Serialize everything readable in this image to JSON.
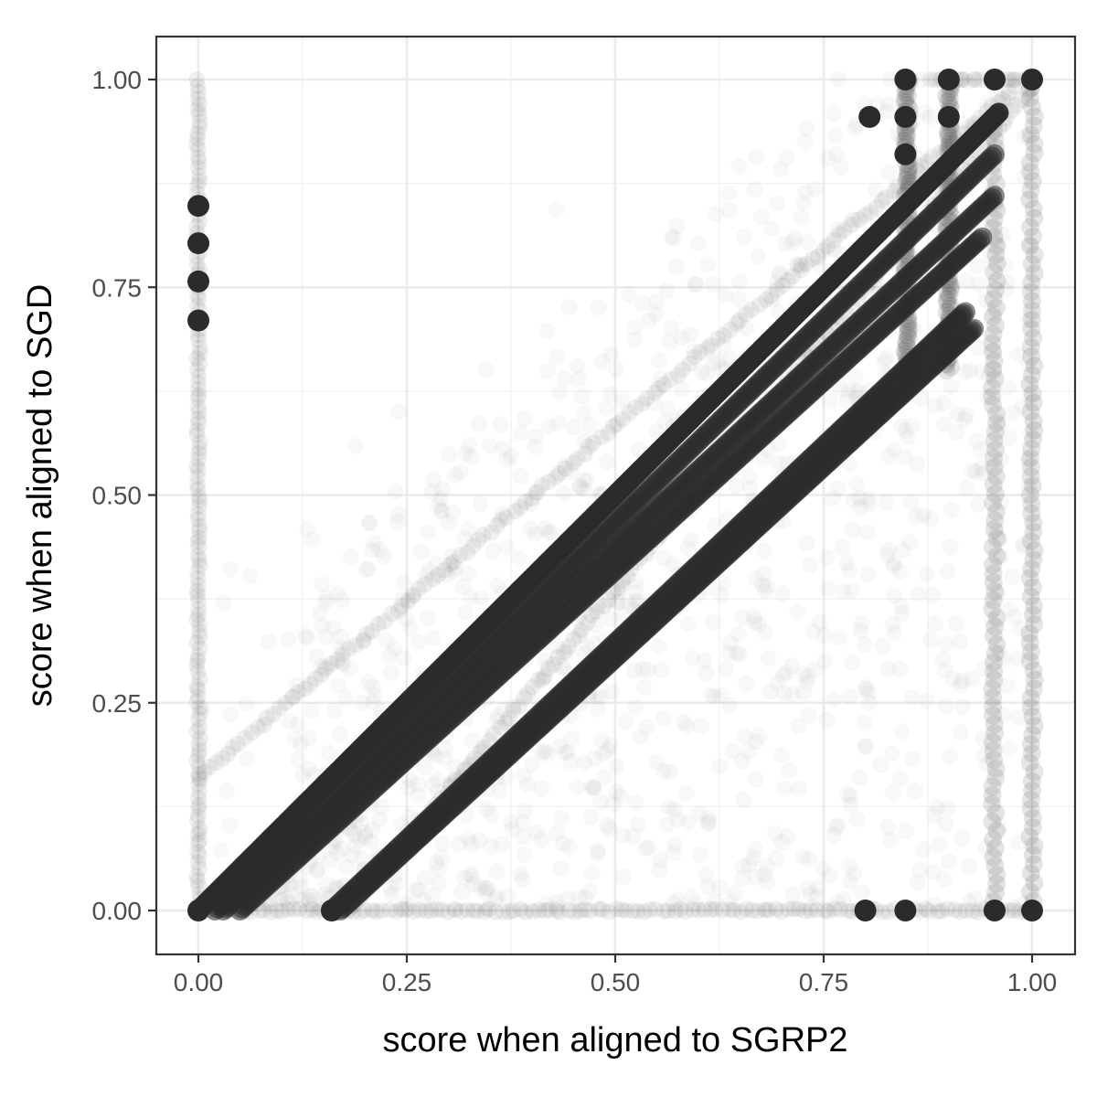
{
  "chart_data": {
    "type": "scatter",
    "title": "",
    "xlabel": "score when aligned to SGRP2",
    "ylabel": "score when aligned to SGD",
    "xlim": [
      -0.05,
      1.05
    ],
    "ylim": [
      -0.05,
      1.05
    ],
    "x_ticks": [
      0,
      0.25,
      0.5,
      0.75,
      1
    ],
    "y_ticks": [
      0,
      0.25,
      0.5,
      0.75,
      1
    ],
    "x_tick_labels": [
      "0.00",
      "0.25",
      "0.50",
      "0.75",
      "1.00"
    ],
    "y_tick_labels": [
      "0.00",
      "0.25",
      "0.50",
      "0.75",
      "1.00"
    ],
    "grid": true,
    "legend": "none",
    "point_color": "#2b2b2b",
    "dense_segments": [
      {
        "x": [
          0,
          0.96
        ],
        "y": [
          0,
          0.96
        ]
      },
      {
        "x": [
          0.02,
          0.955
        ],
        "y": [
          0,
          0.91
        ]
      },
      {
        "x": [
          0.03,
          0.955
        ],
        "y": [
          0,
          0.86
        ]
      },
      {
        "x": [
          0.05,
          0.94
        ],
        "y": [
          0,
          0.81
        ]
      },
      {
        "x": [
          0.16,
          0.92
        ],
        "y": [
          0,
          0.72
        ]
      },
      {
        "x": [
          0.17,
          0.93
        ],
        "y": [
          0,
          0.7
        ]
      }
    ],
    "faint_segments": [
      {
        "x": [
          0,
          0.98
        ],
        "y": [
          0.16,
          0.99
        ]
      },
      {
        "x": [
          0.18,
          1.0
        ],
        "y": [
          0,
          0.99
        ]
      },
      {
        "x": [
          0,
          1.0
        ],
        "y": [
          0,
          0
        ]
      },
      {
        "x": [
          0,
          0
        ],
        "y": [
          0,
          1.0
        ]
      }
    ],
    "columns": [
      {
        "x": 0.85,
        "y": [
          0.65,
          1.0
        ]
      },
      {
        "x": 0.9,
        "y": [
          0.65,
          1.0
        ]
      },
      {
        "x": 0.955,
        "y": [
          0.0,
          0.96
        ]
      },
      {
        "x": 1.0,
        "y": [
          0.0,
          1.0
        ]
      }
    ],
    "highlight_points": [
      {
        "x": 0.0,
        "y": 0.848
      },
      {
        "x": 0.0,
        "y": 0.803
      },
      {
        "x": 0.0,
        "y": 0.757
      },
      {
        "x": 0.0,
        "y": 0.71
      },
      {
        "x": 0.848,
        "y": 1.0
      },
      {
        "x": 0.9,
        "y": 1.0
      },
      {
        "x": 0.955,
        "y": 1.0
      },
      {
        "x": 1.0,
        "y": 1.0
      },
      {
        "x": 0.805,
        "y": 0.955
      },
      {
        "x": 0.848,
        "y": 0.955
      },
      {
        "x": 0.9,
        "y": 0.955
      },
      {
        "x": 0.848,
        "y": 0.91
      },
      {
        "x": 0.848,
        "y": 0.0
      },
      {
        "x": 0.955,
        "y": 0.0
      },
      {
        "x": 1.0,
        "y": 0.0
      },
      {
        "x": 0.8,
        "y": 0.0
      },
      {
        "x": 0.16,
        "y": 0.0
      },
      {
        "x": 0.0,
        "y": 0.0
      }
    ]
  }
}
